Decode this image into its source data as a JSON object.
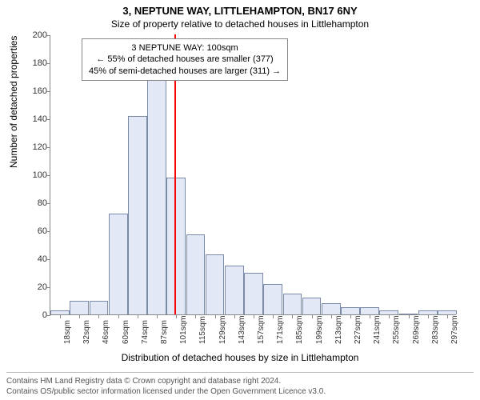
{
  "title": "3, NEPTUNE WAY, LITTLEHAMPTON, BN17 6NY",
  "subtitle": "Size of property relative to detached houses in Littlehampton",
  "ylabel": "Number of detached properties",
  "xlabel": "Distribution of detached houses by size in Littlehampton",
  "chart": {
    "type": "histogram",
    "y_max": 200,
    "y_ticks": [
      0,
      20,
      40,
      60,
      80,
      100,
      120,
      140,
      160,
      180,
      200
    ],
    "x_categories": [
      "18sqm",
      "32sqm",
      "46sqm",
      "60sqm",
      "74sqm",
      "87sqm",
      "101sqm",
      "115sqm",
      "129sqm",
      "143sqm",
      "157sqm",
      "171sqm",
      "185sqm",
      "199sqm",
      "213sqm",
      "227sqm",
      "241sqm",
      "255sqm",
      "269sqm",
      "283sqm",
      "297sqm"
    ],
    "values": [
      3,
      10,
      10,
      72,
      142,
      172,
      98,
      57,
      43,
      35,
      30,
      22,
      15,
      12,
      8,
      5,
      5,
      3,
      0,
      3,
      3
    ],
    "bar_fill": "#e2e8f5",
    "bar_stroke": "#7a8aa8",
    "background_color": "#ffffff",
    "axis_color": "#888888",
    "reference_line": {
      "value_sqm": 100,
      "color": "#ff0000",
      "width": 2
    }
  },
  "annotation": {
    "line1": "3 NEPTUNE WAY: 100sqm",
    "line2": "← 55% of detached houses are smaller (377)",
    "line3": "45% of semi-detached houses are larger (311) →"
  },
  "footer": {
    "line1": "Contains HM Land Registry data © Crown copyright and database right 2024.",
    "line2": "Contains OS/public sector information licensed under the Open Government Licence v3.0."
  }
}
